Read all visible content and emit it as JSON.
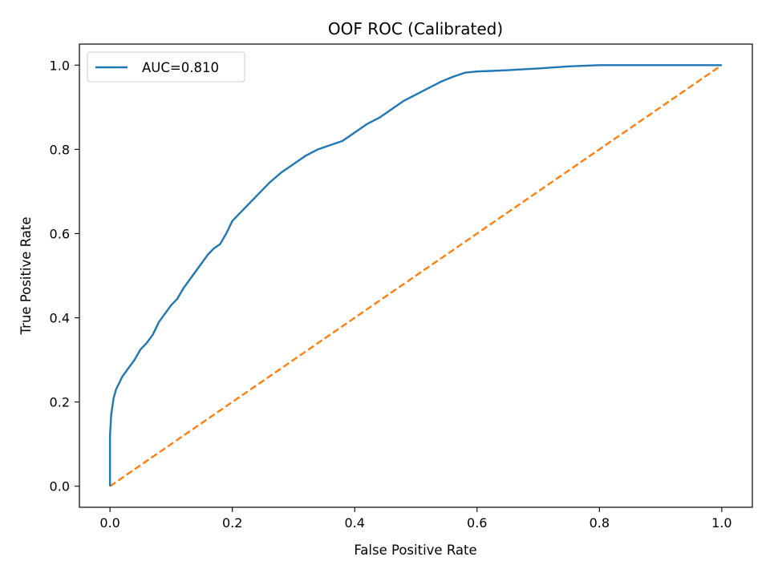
{
  "chart_data": {
    "type": "line",
    "title": "OOF ROC (Calibrated)",
    "xlabel": "False Positive Rate",
    "ylabel": "True Positive Rate",
    "xlim": [
      -0.05,
      1.05
    ],
    "ylim": [
      -0.05,
      1.05
    ],
    "xticks": [
      0.0,
      0.2,
      0.4,
      0.6,
      0.8,
      1.0
    ],
    "yticks": [
      0.0,
      0.2,
      0.4,
      0.6,
      0.8,
      1.0
    ],
    "xtick_labels": [
      "0.0",
      "0.2",
      "0.4",
      "0.6",
      "0.8",
      "1.0"
    ],
    "ytick_labels": [
      "0.0",
      "0.2",
      "0.4",
      "0.6",
      "0.8",
      "1.0"
    ],
    "grid": false,
    "legend_position": "top-left",
    "series": [
      {
        "name": "AUC=0.810",
        "color": "#1f77b4",
        "line_style": "solid",
        "x": [
          0.0,
          0.0,
          0.002,
          0.004,
          0.006,
          0.01,
          0.015,
          0.02,
          0.03,
          0.04,
          0.05,
          0.06,
          0.07,
          0.08,
          0.09,
          0.1,
          0.11,
          0.12,
          0.13,
          0.14,
          0.15,
          0.16,
          0.17,
          0.18,
          0.19,
          0.2,
          0.21,
          0.22,
          0.24,
          0.26,
          0.28,
          0.3,
          0.32,
          0.34,
          0.36,
          0.38,
          0.4,
          0.42,
          0.44,
          0.46,
          0.48,
          0.5,
          0.52,
          0.54,
          0.56,
          0.58,
          0.6,
          0.62,
          0.65,
          0.7,
          0.75,
          0.8,
          0.9,
          1.0
        ],
        "y": [
          0.0,
          0.12,
          0.17,
          0.19,
          0.21,
          0.23,
          0.245,
          0.26,
          0.28,
          0.3,
          0.325,
          0.34,
          0.36,
          0.39,
          0.41,
          0.43,
          0.445,
          0.47,
          0.49,
          0.51,
          0.53,
          0.55,
          0.565,
          0.575,
          0.6,
          0.63,
          0.645,
          0.66,
          0.69,
          0.72,
          0.745,
          0.765,
          0.785,
          0.8,
          0.81,
          0.82,
          0.84,
          0.86,
          0.875,
          0.895,
          0.915,
          0.93,
          0.945,
          0.96,
          0.972,
          0.982,
          0.985,
          0.986,
          0.988,
          0.992,
          0.997,
          1.0,
          1.0,
          1.0
        ]
      },
      {
        "name": "",
        "color": "#ff7f0e",
        "line_style": "dashed",
        "x": [
          0.0,
          1.0
        ],
        "y": [
          0.0,
          1.0
        ]
      }
    ]
  }
}
